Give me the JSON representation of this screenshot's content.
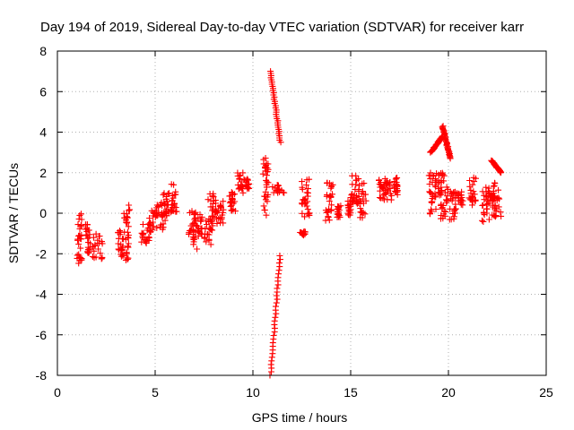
{
  "chart_data": {
    "type": "scatter",
    "title": "Day 194 of 2019, Sidereal Day-to-day VTEC variation (SDTVAR) for receiver karr",
    "xlabel": "GPS time / hours",
    "ylabel": "SDTVAR / TECUs",
    "xlim": [
      0,
      25
    ],
    "ylim": [
      -8,
      8
    ],
    "xticks": [
      0,
      5,
      10,
      15,
      20,
      25
    ],
    "yticks": [
      -8,
      -6,
      -4,
      -2,
      0,
      2,
      4,
      6,
      8
    ],
    "grid": true,
    "marker": "+",
    "color": "#ff0000",
    "clusters": [
      {
        "x": [
          1.0,
          1.25
        ],
        "y": [
          -2.5,
          0.0
        ]
      },
      {
        "x": [
          1.4,
          1.7
        ],
        "y": [
          -2.0,
          -0.5
        ]
      },
      {
        "x": [
          1.8,
          2.3
        ],
        "y": [
          -2.3,
          -1.0
        ]
      },
      {
        "x": [
          3.1,
          3.4
        ],
        "y": [
          -2.2,
          -0.8
        ]
      },
      {
        "x": [
          3.4,
          3.7
        ],
        "y": [
          -2.4,
          0.4
        ]
      },
      {
        "x": [
          4.3,
          4.7
        ],
        "y": [
          -1.5,
          -0.5
        ]
      },
      {
        "x": [
          4.7,
          5.1
        ],
        "y": [
          -1.0,
          0.3
        ]
      },
      {
        "x": [
          5.1,
          5.6
        ],
        "y": [
          -0.8,
          0.5
        ]
      },
      {
        "x": [
          5.3,
          5.8
        ],
        "y": [
          -0.2,
          1.0
        ]
      },
      {
        "x": [
          5.8,
          6.1
        ],
        "y": [
          0.0,
          1.5
        ]
      },
      {
        "x": [
          6.7,
          7.2
        ],
        "y": [
          -1.8,
          0.2
        ]
      },
      {
        "x": [
          7.0,
          7.4
        ],
        "y": [
          -1.2,
          0.0
        ]
      },
      {
        "x": [
          7.5,
          8.0
        ],
        "y": [
          -1.6,
          -0.2
        ]
      },
      {
        "x": [
          7.7,
          8.1
        ],
        "y": [
          -0.5,
          1.0
        ]
      },
      {
        "x": [
          8.1,
          8.5
        ],
        "y": [
          -0.6,
          0.6
        ]
      },
      {
        "x": [
          8.8,
          9.1
        ],
        "y": [
          0.0,
          1.1
        ]
      },
      {
        "x": [
          9.2,
          9.5
        ],
        "y": [
          1.0,
          2.0
        ]
      },
      {
        "x": [
          9.5,
          9.8
        ],
        "y": [
          1.2,
          1.7
        ]
      },
      {
        "x": [
          10.5,
          10.8
        ],
        "y": [
          -0.2,
          2.8
        ]
      },
      {
        "x": [
          11.0,
          11.6
        ],
        "y": [
          0.9,
          1.4
        ]
      },
      {
        "x": [
          10.9,
          11.4
        ],
        "y": [
          3.5,
          7.0
        ],
        "trend": "down"
      },
      {
        "x": [
          10.9,
          11.4
        ],
        "y": [
          -8.0,
          -2.1
        ],
        "trend": "up"
      },
      {
        "x": [
          12.4,
          12.7
        ],
        "y": [
          -1.1,
          -0.9
        ]
      },
      {
        "x": [
          12.5,
          12.9
        ],
        "y": [
          -0.2,
          1.9
        ]
      },
      {
        "x": [
          13.7,
          14.1
        ],
        "y": [
          -0.4,
          1.5
        ]
      },
      {
        "x": [
          14.3,
          14.5
        ],
        "y": [
          -0.2,
          0.4
        ]
      },
      {
        "x": [
          14.8,
          15.0
        ],
        "y": [
          -0.1,
          0.6
        ]
      },
      {
        "x": [
          15.0,
          15.4
        ],
        "y": [
          0.3,
          1.9
        ]
      },
      {
        "x": [
          15.4,
          15.8
        ],
        "y": [
          -0.3,
          1.5
        ]
      },
      {
        "x": [
          16.4,
          16.8
        ],
        "y": [
          0.5,
          1.7
        ]
      },
      {
        "x": [
          16.8,
          17.1
        ],
        "y": [
          0.6,
          1.6
        ]
      },
      {
        "x": [
          17.2,
          17.4
        ],
        "y": [
          0.8,
          1.8
        ]
      },
      {
        "x": [
          19.0,
          19.4
        ],
        "y": [
          -0.4,
          2.0
        ]
      },
      {
        "x": [
          19.3,
          19.8
        ],
        "y": [
          0.8,
          2.0
        ]
      },
      {
        "x": [
          19.1,
          19.7
        ],
        "y": [
          3.0,
          3.8
        ],
        "trend": "up"
      },
      {
        "x": [
          19.7,
          20.1
        ],
        "y": [
          2.7,
          4.3
        ],
        "trend": "down"
      },
      {
        "x": [
          19.6,
          20.0
        ],
        "y": [
          -0.3,
          1.3
        ]
      },
      {
        "x": [
          20.0,
          20.4
        ],
        "y": [
          -0.4,
          1.1
        ]
      },
      {
        "x": [
          20.4,
          20.8
        ],
        "y": [
          0.4,
          1.1
        ]
      },
      {
        "x": [
          21.0,
          21.4
        ],
        "y": [
          0.4,
          1.8
        ]
      },
      {
        "x": [
          21.7,
          22.1
        ],
        "y": [
          -0.5,
          1.3
        ]
      },
      {
        "x": [
          22.1,
          22.4
        ],
        "y": [
          0.3,
          1.1
        ]
      },
      {
        "x": [
          22.2,
          22.7
        ],
        "y": [
          2.0,
          2.6
        ],
        "trend": "down"
      },
      {
        "x": [
          22.2,
          22.7
        ],
        "y": [
          -0.2,
          1.5
        ]
      }
    ]
  }
}
